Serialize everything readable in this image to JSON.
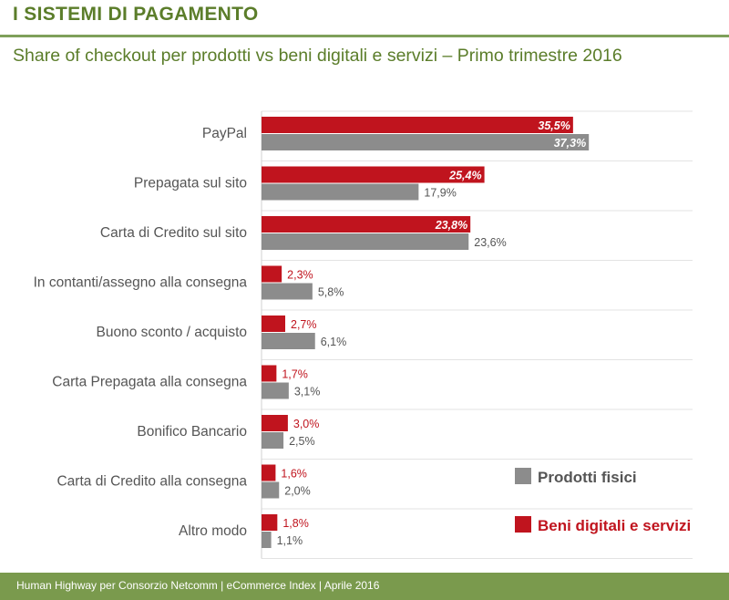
{
  "header": {
    "title": "I SISTEMI DI PAGAMENTO",
    "subtitle": "Share of checkout per prodotti vs beni digitali e servizi – Primo trimestre 2016"
  },
  "footer": {
    "text": "Human Highway per Consorzio Netcomm | eCommerce Index |  Aprile 2016"
  },
  "colors": {
    "digital": "#c0141e",
    "physical": "#8c8c8c",
    "label_physical": "#555555",
    "category_text": "#555555",
    "grid": "#e3e3e3"
  },
  "chart_data": {
    "type": "bar",
    "orientation": "horizontal",
    "categories": [
      "PayPal",
      "Prepagata sul sito",
      "Carta di Credito sul sito",
      "In contanti/assegno alla consegna",
      "Buono sconto / acquisto",
      "Carta Prepagata alla consegna",
      "Bonifico Bancario",
      "Carta di Credito alla consegna",
      "Altro modo"
    ],
    "series": [
      {
        "name": "Beni digitali e servizi",
        "values": [
          35.5,
          25.4,
          23.8,
          2.3,
          2.7,
          1.7,
          3.0,
          1.6,
          1.8
        ],
        "labels": [
          "35,5%",
          "25,4%",
          "23,8%",
          "2,3%",
          "2,7%",
          "1,7%",
          "3,0%",
          "1,6%",
          "1,8%"
        ]
      },
      {
        "name": "Prodotti fisici",
        "values": [
          37.3,
          17.9,
          23.6,
          5.8,
          6.1,
          3.1,
          2.5,
          2.0,
          1.1
        ],
        "labels": [
          "37,3%",
          "17,9%",
          "23,6%",
          "5,8%",
          "6,1%",
          "3,1%",
          "2,5%",
          "2,0%",
          "1,1%"
        ]
      }
    ],
    "legend": [
      "Prodotti fisici",
      "Beni digitali e servizi"
    ],
    "legend_position": "bottom-right",
    "xlim": [
      0,
      40
    ]
  }
}
